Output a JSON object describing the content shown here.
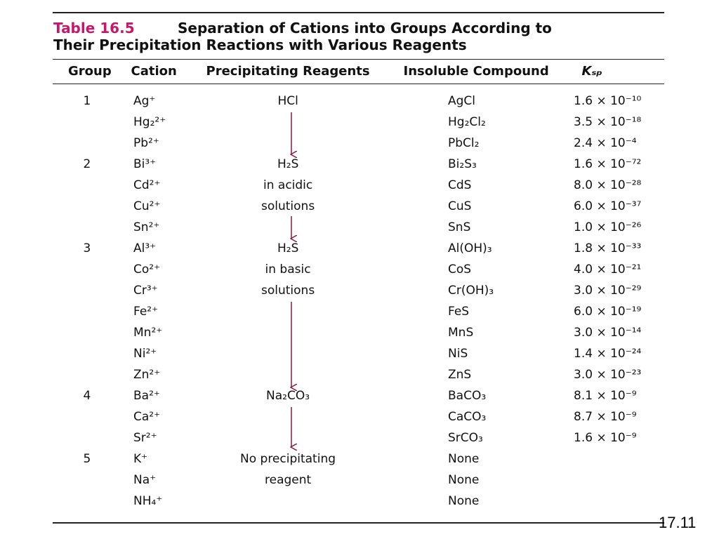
{
  "header": {
    "label": "Table 16.5",
    "caption_lines": [
      "Separation of Cations into Groups According to",
      "Their Precipitation Reactions with Various Reagents"
    ]
  },
  "table": {
    "columns": {
      "group": "Group",
      "cation": "Cation",
      "reagent": "Precipitating Reagents",
      "compound": "Insoluble Compound",
      "ksp": "Kₛₚ"
    },
    "rows": [
      {
        "group": "1",
        "cation": "Ag⁺",
        "reagent": "HCl",
        "compound": "AgCl",
        "ksp": "1.6 × 10⁻¹⁰"
      },
      {
        "cation": "Hg₂²⁺",
        "compound": "Hg₂Cl₂",
        "ksp": "3.5 × 10⁻¹⁸"
      },
      {
        "cation": "Pb²⁺",
        "compound": "PbCl₂",
        "ksp": "2.4 × 10⁻⁴"
      },
      {
        "group": "2",
        "cation": "Bi³⁺",
        "reagent": "H₂S",
        "compound": "Bi₂S₃",
        "ksp": "1.6 × 10⁻⁷²"
      },
      {
        "cation": "Cd²⁺",
        "reagent": "in acidic",
        "compound": "CdS",
        "ksp": "8.0 × 10⁻²⁸"
      },
      {
        "cation": "Cu²⁺",
        "reagent": "solutions",
        "compound": "CuS",
        "ksp": "6.0 × 10⁻³⁷"
      },
      {
        "cation": "Sn²⁺",
        "compound": "SnS",
        "ksp": "1.0 × 10⁻²⁶"
      },
      {
        "group": "3",
        "cation": "Al³⁺",
        "reagent": "H₂S",
        "compound": "Al(OH)₃",
        "ksp": "1.8 × 10⁻³³"
      },
      {
        "cation": "Co²⁺",
        "reagent": "in basic",
        "compound": "CoS",
        "ksp": "4.0 × 10⁻²¹"
      },
      {
        "cation": "Cr³⁺",
        "reagent": "solutions",
        "compound": "Cr(OH)₃",
        "ksp": "3.0 × 10⁻²⁹"
      },
      {
        "cation": "Fe²⁺",
        "compound": "FeS",
        "ksp": "6.0 × 10⁻¹⁹"
      },
      {
        "cation": "Mn²⁺",
        "compound": "MnS",
        "ksp": "3.0 × 10⁻¹⁴"
      },
      {
        "cation": "Ni²⁺",
        "compound": "NiS",
        "ksp": "1.4 × 10⁻²⁴"
      },
      {
        "cation": "Zn²⁺",
        "compound": "ZnS",
        "ksp": "3.0 × 10⁻²³"
      },
      {
        "group": "4",
        "cation": "Ba²⁺",
        "reagent": "Na₂CO₃",
        "compound": "BaCO₃",
        "ksp": "8.1 × 10⁻⁹"
      },
      {
        "cation": "Ca²⁺",
        "compound": "CaCO₃",
        "ksp": "8.7 × 10⁻⁹"
      },
      {
        "cation": "Sr²⁺",
        "compound": "SrCO₃",
        "ksp": "1.6 × 10⁻⁹"
      },
      {
        "group": "5",
        "cation": "K⁺",
        "reagent": "No precipitating",
        "compound": "None"
      },
      {
        "cation": "Na⁺",
        "reagent": "reagent",
        "compound": "None"
      },
      {
        "cation": "NH₄⁺",
        "compound": "None"
      }
    ]
  },
  "slide_number": "17.11"
}
